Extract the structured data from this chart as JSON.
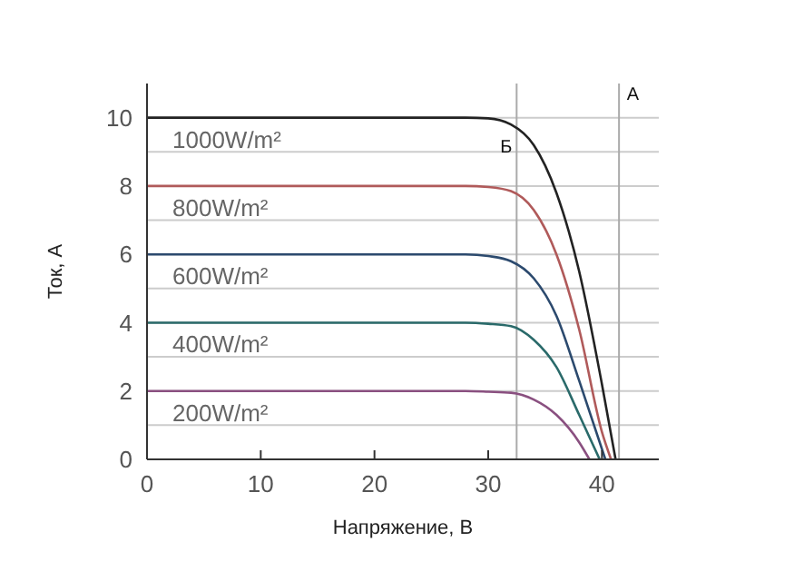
{
  "chart_data": {
    "type": "line",
    "xlabel": "Напряжение, В",
    "ylabel": "Ток, А",
    "xlim": [
      0,
      45
    ],
    "ylim": [
      0,
      11
    ],
    "xticks": [
      0,
      10,
      20,
      30,
      40
    ],
    "yticks": [
      0,
      {
        "value": 1,
        "label": null
      },
      2,
      {
        "value": 3,
        "label": null
      },
      4,
      {
        "value": 5,
        "label": null
      },
      6,
      {
        "value": 7,
        "label": null
      },
      8,
      {
        "value": 9,
        "label": null
      },
      10
    ],
    "grid": "y",
    "legend": false,
    "marker": "none",
    "line_style": "solid",
    "series": [
      {
        "name": "1000W/m²",
        "color": "#222222",
        "x": [
          0,
          28,
          30,
          32,
          34,
          36,
          38,
          40,
          41.2
        ],
        "values": [
          10,
          10,
          9.98,
          9.8,
          9.2,
          7.8,
          5.5,
          2.2,
          0
        ]
      },
      {
        "name": "800W/m²",
        "color": "#b05a5a",
        "x": [
          0,
          28,
          30,
          32,
          34,
          36,
          38,
          40,
          40.8
        ],
        "values": [
          8,
          8,
          7.97,
          7.85,
          7.3,
          6,
          3.8,
          0.8,
          0
        ]
      },
      {
        "name": "600W/m²",
        "color": "#2c4a6e",
        "x": [
          0,
          28,
          30,
          32,
          34,
          36,
          38,
          40.3
        ],
        "values": [
          6,
          6,
          5.95,
          5.8,
          5.3,
          4.2,
          2.3,
          0
        ]
      },
      {
        "name": "400W/m²",
        "color": "#2a6a6a",
        "x": [
          0,
          28,
          30,
          32,
          34,
          36,
          38,
          39.8
        ],
        "values": [
          4,
          4,
          3.97,
          3.9,
          3.5,
          2.7,
          1.3,
          0
        ]
      },
      {
        "name": "200W/m²",
        "color": "#8a5080",
        "x": [
          0,
          28,
          30,
          32,
          34,
          36,
          38,
          38.9
        ],
        "values": [
          2,
          2,
          1.98,
          1.95,
          1.75,
          1.3,
          0.5,
          0
        ]
      }
    ],
    "ref_lines": [
      {
        "axis": "x",
        "value": 32.5,
        "label": "Б",
        "color": "#aaaaaa"
      },
      {
        "axis": "x",
        "value": 41.5,
        "label": "А",
        "color": "#aaaaaa"
      }
    ]
  }
}
